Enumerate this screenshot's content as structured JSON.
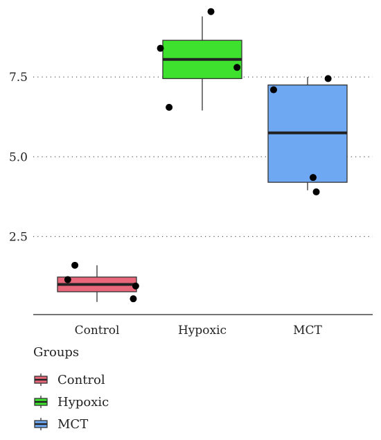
{
  "chart_data": {
    "type": "box",
    "categories": [
      "Control",
      "Hypoxic",
      "MCT"
    ],
    "ylim": [
      0,
      10
    ],
    "yticks": [
      "2.5",
      "5.0",
      "7.5"
    ],
    "ytick_values": [
      2.5,
      5.0,
      7.5
    ],
    "grid": "horizontal dotted",
    "xlabel": "",
    "ylabel": "",
    "legend": {
      "title": "Groups",
      "placement": "bottom-left",
      "items": [
        {
          "label": "Control",
          "color": "#e8677a"
        },
        {
          "label": "Hypoxic",
          "color": "#3ee12e"
        },
        {
          "label": "MCT",
          "color": "#6ea7f2"
        }
      ]
    },
    "boxes": [
      {
        "name": "Control",
        "color": "#e8677a",
        "whisker_low": 0.45,
        "q1": 0.77,
        "median": 1.0,
        "q3": 1.23,
        "whisker_high": 1.6,
        "points": [
          {
            "pos": -0.37,
            "y": 1.15
          },
          {
            "pos": -0.28,
            "y": 1.6
          },
          {
            "pos": 0.49,
            "y": 0.95
          },
          {
            "pos": 0.46,
            "y": 0.55
          }
        ]
      },
      {
        "name": "Hypoxic",
        "color": "#3ee12e",
        "whisker_low": 6.45,
        "q1": 7.45,
        "median": 8.05,
        "q3": 8.65,
        "whisker_high": 9.4,
        "points": [
          {
            "pos": -0.53,
            "y": 8.4
          },
          {
            "pos": -0.42,
            "y": 6.55
          },
          {
            "pos": 0.11,
            "y": 9.55
          },
          {
            "pos": 0.44,
            "y": 7.8
          }
        ]
      },
      {
        "name": "MCT",
        "color": "#6ea7f2",
        "whisker_low": 3.95,
        "q1": 4.2,
        "median": 5.75,
        "q3": 7.25,
        "whisker_high": 7.5,
        "points": [
          {
            "pos": -0.43,
            "y": 7.1
          },
          {
            "pos": 0.07,
            "y": 4.35
          },
          {
            "pos": 0.11,
            "y": 3.9
          },
          {
            "pos": 0.26,
            "y": 7.45
          }
        ]
      }
    ]
  }
}
